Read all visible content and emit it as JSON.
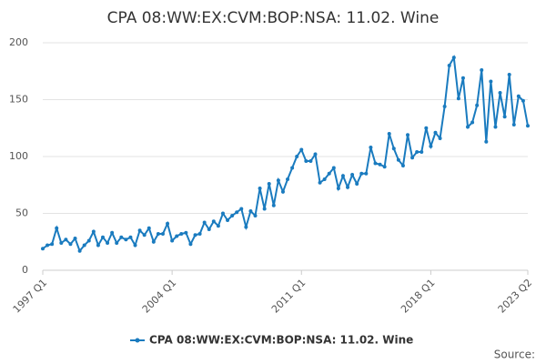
{
  "chart_data": {
    "type": "line",
    "title": "CPA 08:WW:EX:CVM:BOP:NSA: 11.02. Wine",
    "categories": [
      "1997 Q1",
      null,
      null,
      null,
      null,
      null,
      null,
      null,
      null,
      null,
      null,
      null,
      null,
      null,
      null,
      null,
      null,
      null,
      null,
      null,
      null,
      null,
      null,
      null,
      null,
      null,
      null,
      null,
      "2004 Q1",
      null,
      null,
      null,
      null,
      null,
      null,
      null,
      null,
      null,
      null,
      null,
      null,
      null,
      null,
      null,
      null,
      null,
      null,
      null,
      null,
      null,
      null,
      null,
      null,
      null,
      null,
      null,
      "2011 Q1",
      null,
      null,
      null,
      null,
      null,
      null,
      null,
      null,
      null,
      null,
      null,
      null,
      null,
      null,
      null,
      null,
      null,
      null,
      null,
      null,
      null,
      null,
      null,
      null,
      null,
      null,
      null,
      "2018 Q1",
      null,
      null,
      null,
      null,
      null,
      null,
      null,
      null,
      null,
      null,
      null,
      null,
      null,
      null,
      null,
      null,
      null,
      null,
      null,
      null,
      "2023 Q2"
    ],
    "series": [
      {
        "name": "CPA 08:WW:EX:CVM:BOP:NSA: 11.02. Wine",
        "color": "#1a7bbf",
        "values": [
          19,
          22,
          23,
          37,
          24,
          27,
          23,
          28,
          17,
          22,
          26,
          34,
          22,
          29,
          24,
          33,
          24,
          29,
          27,
          29,
          22,
          35,
          31,
          37,
          25,
          32,
          32,
          41,
          26,
          30,
          32,
          33,
          23,
          31,
          32,
          42,
          36,
          43,
          39,
          50,
          44,
          48,
          51,
          54,
          38,
          52,
          48,
          72,
          54,
          76,
          57,
          79,
          69,
          80,
          90,
          100,
          106,
          96,
          96,
          102,
          77,
          80,
          85,
          90,
          72,
          83,
          73,
          84,
          76,
          85,
          85,
          108,
          94,
          93,
          91,
          120,
          107,
          97,
          92,
          119,
          99,
          104,
          104,
          125,
          109,
          121,
          116,
          144,
          180,
          187,
          151,
          169,
          126,
          130,
          145,
          176,
          113,
          166,
          126,
          156,
          135,
          172,
          128,
          153,
          149,
          127
        ]
      }
    ],
    "ylim": [
      0,
      200
    ],
    "yticks": [
      0,
      50,
      100,
      150,
      200
    ],
    "grid": true,
    "source_label": "Source:"
  }
}
